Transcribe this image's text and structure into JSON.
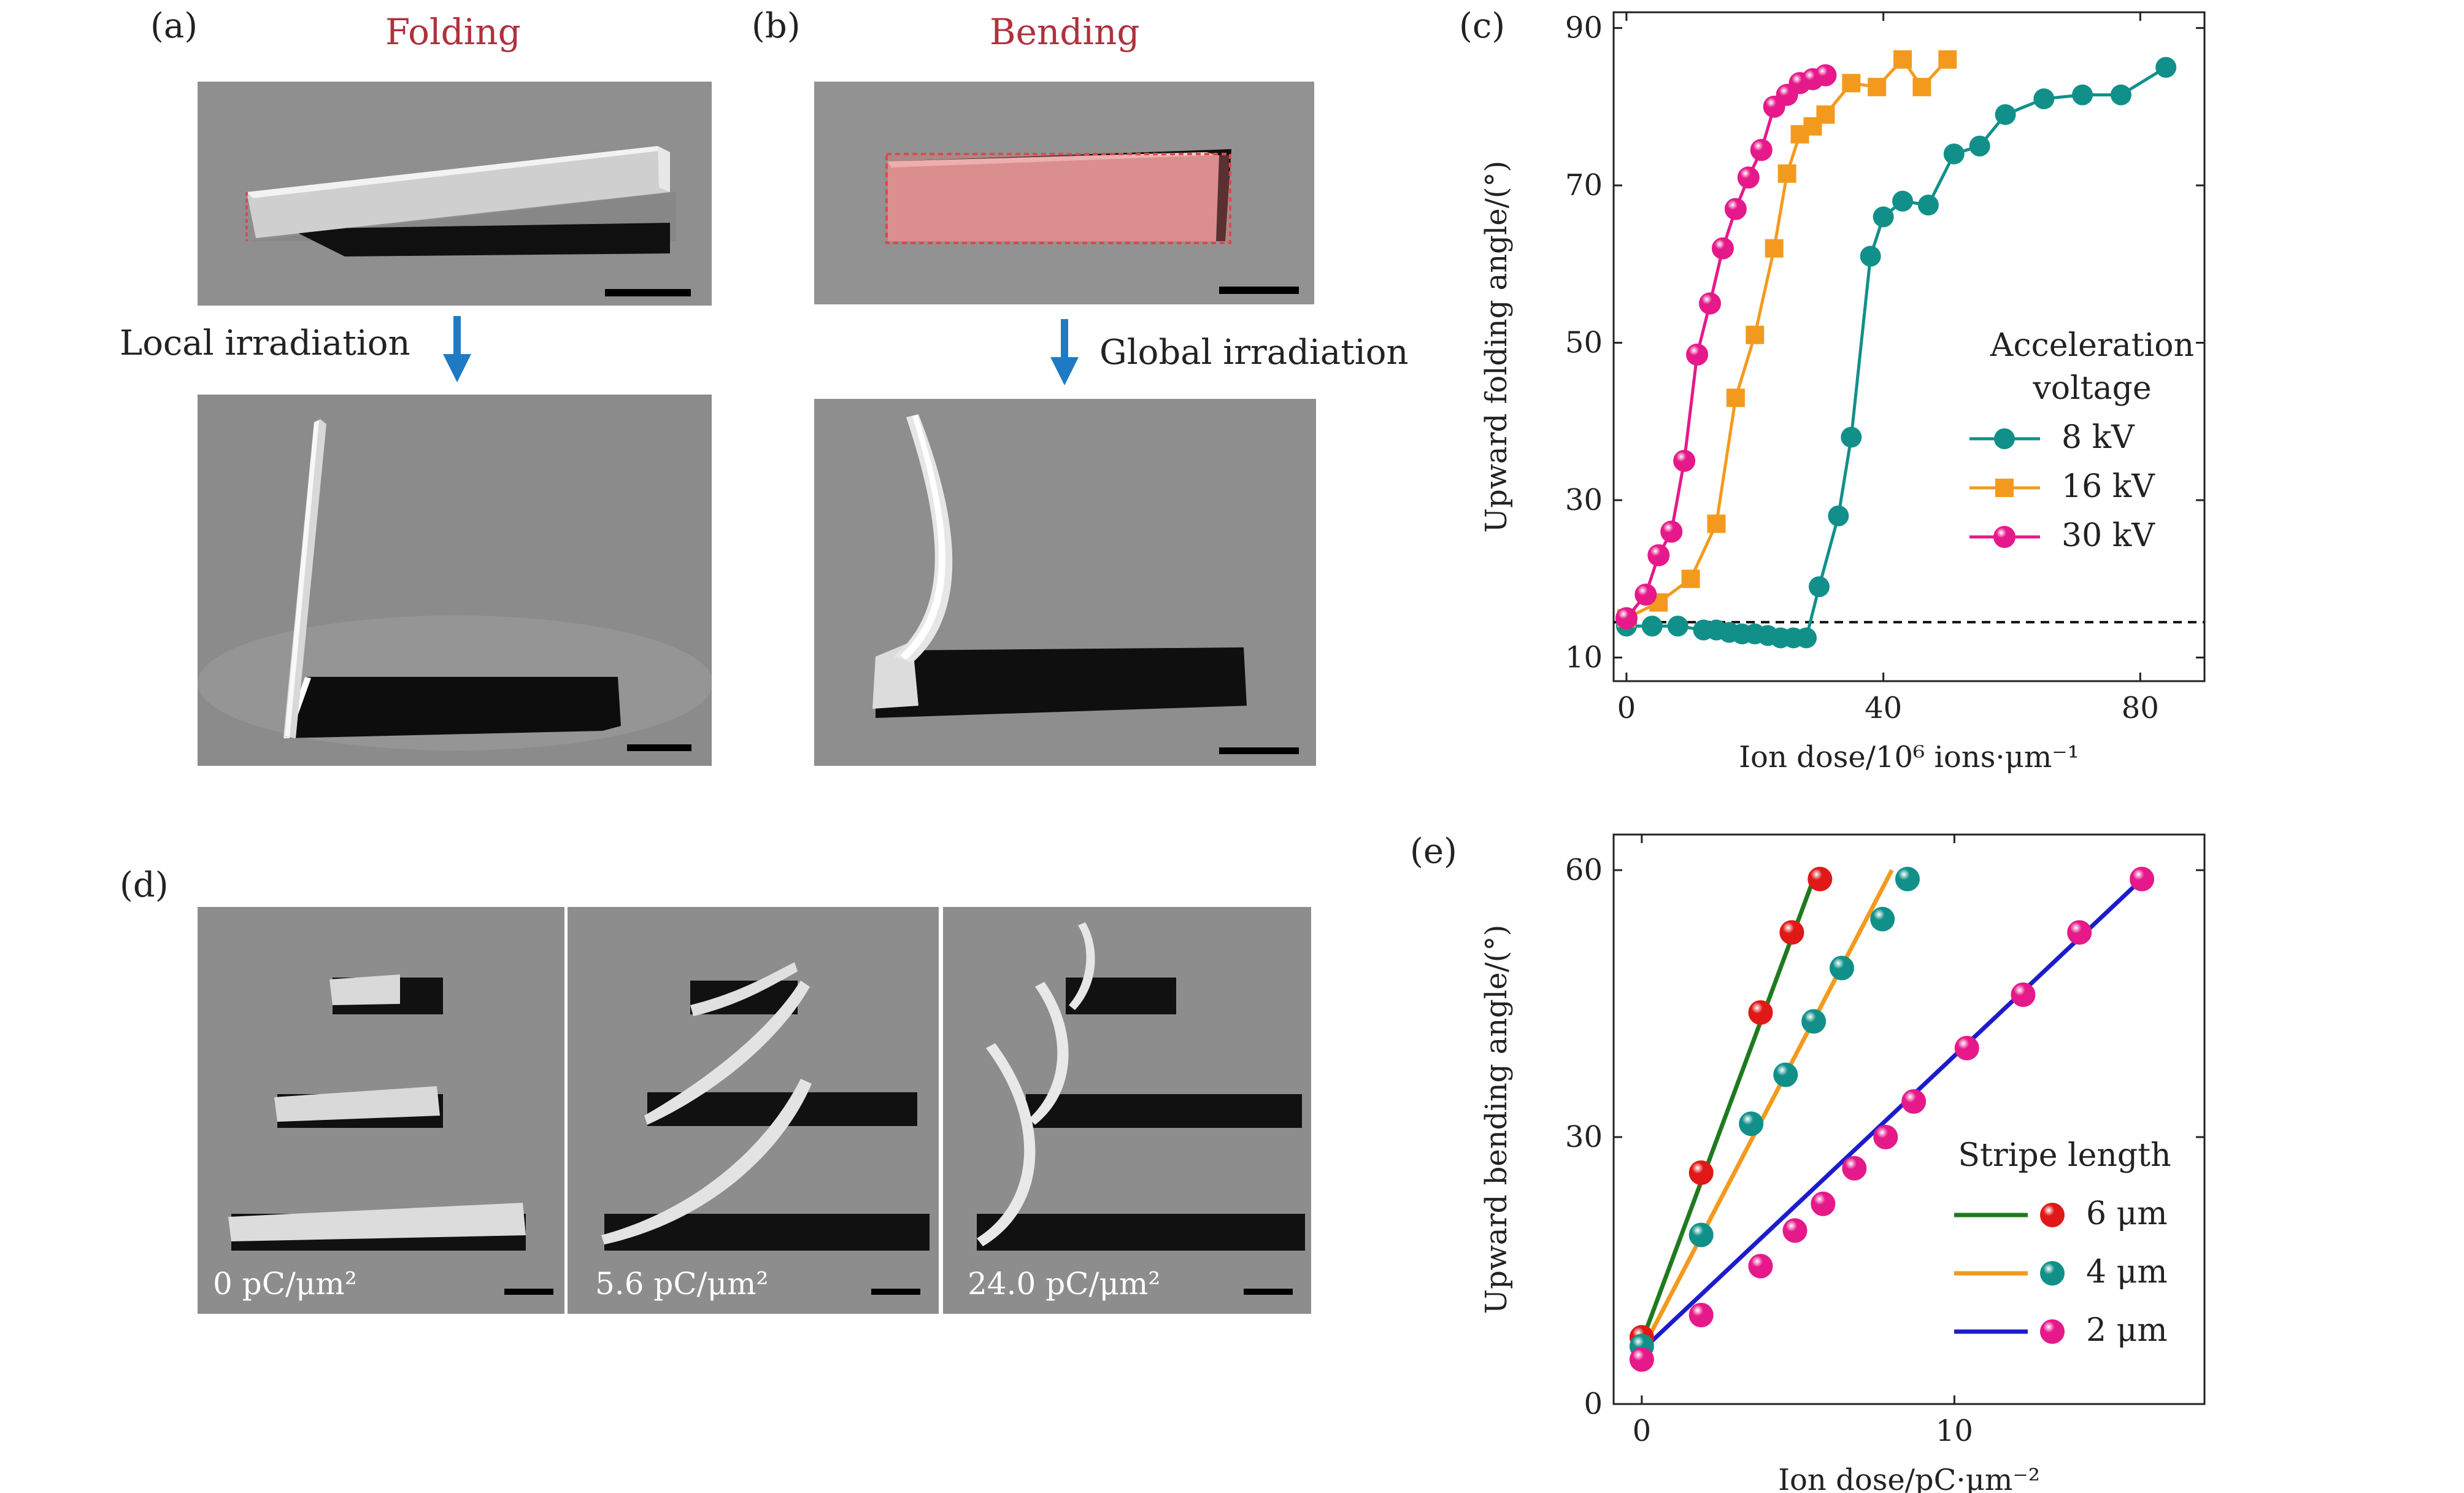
{
  "panels": {
    "a": {
      "label": "(a)",
      "title": "Folding",
      "arrow_text": "Local irradiation"
    },
    "b": {
      "label": "(b)",
      "title": "Bending",
      "arrow_text": "Global irradiation"
    },
    "c": {
      "label": "(c)"
    },
    "d": {
      "label": "(d)",
      "images": [
        "0 pC/μm²",
        "5.6 pC/μm²",
        "24.0 pC/μm²"
      ]
    },
    "e": {
      "label": "(e)"
    }
  },
  "colors": {
    "title_red": "#b0313d",
    "arrow_blue": "#1f7ac6",
    "teal": "#11908a",
    "orange": "#f39a1e",
    "magenta": "#e6198a",
    "red": "#e01818",
    "green": "#1f7a1f",
    "blue": "#1c1ccc"
  },
  "chart_data": [
    {
      "id": "c",
      "type": "line",
      "xlabel": "Ion dose/10⁶ ions·μm⁻¹",
      "ylabel": "Upward folding angle/(°)",
      "xlim": [
        -2,
        90
      ],
      "ylim": [
        7,
        92
      ],
      "xticks": [
        0,
        40,
        80
      ],
      "yticks": [
        10,
        30,
        50,
        70,
        90
      ],
      "reference_line_y": 14.5,
      "legend_title": "Acceleration voltage",
      "series": [
        {
          "name": "8 kV",
          "color": "#11908a",
          "marker": "circle",
          "x": [
            0,
            4,
            8,
            12,
            14,
            16,
            18,
            20,
            22,
            24,
            26,
            28,
            30,
            33,
            35,
            38,
            40,
            43,
            47,
            51,
            55,
            59,
            65,
            71,
            77,
            84
          ],
          "y": [
            14,
            14,
            14,
            13.5,
            13.5,
            13.2,
            13,
            13,
            12.8,
            12.5,
            12.5,
            12.5,
            19,
            28,
            38,
            61,
            66,
            68,
            67.5,
            74,
            75,
            79,
            81,
            81.5,
            81.5,
            85
          ]
        },
        {
          "name": "16 kV",
          "color": "#f39a1e",
          "marker": "square",
          "x": [
            0,
            5,
            10,
            14,
            17,
            20,
            23,
            25,
            27,
            29,
            31,
            35,
            39,
            43,
            46,
            50
          ],
          "y": [
            15,
            17,
            20,
            27,
            43,
            51,
            62,
            71.5,
            76.5,
            77.5,
            79,
            83,
            82.5,
            86,
            82.5,
            86
          ]
        },
        {
          "name": "30 kV",
          "color": "#e6198a",
          "marker": "sphere",
          "x": [
            0,
            3,
            5,
            7,
            9,
            11,
            13,
            15,
            17,
            19,
            21,
            23,
            25,
            27,
            29,
            31
          ],
          "y": [
            15,
            18,
            23,
            26,
            35,
            48.5,
            55,
            62,
            67,
            71,
            74.5,
            80,
            81.5,
            83,
            83.5,
            84
          ]
        }
      ]
    },
    {
      "id": "e",
      "type": "scatter",
      "xlabel": "Ion dose/pC·μm⁻²",
      "ylabel": "Upward bending angle/(°)",
      "xlim": [
        -0.9,
        18
      ],
      "ylim": [
        0,
        64
      ],
      "xticks": [
        0,
        10
      ],
      "yticks": [
        0,
        30,
        60
      ],
      "legend_title": "Stripe length",
      "series": [
        {
          "name": "6 μm",
          "point_color": "#e01818",
          "line_color": "#1f7a1f",
          "x": [
            0,
            1.9,
            3.8,
            4.8,
            5.7
          ],
          "y": [
            7.5,
            26,
            44,
            53,
            59
          ],
          "fit": [
            [
              0,
              7
            ],
            [
              5.6,
              60
            ]
          ]
        },
        {
          "name": "4 μm",
          "point_color": "#11908a",
          "line_color": "#f39a1e",
          "x": [
            0,
            1.9,
            3.5,
            4.6,
            5.5,
            6.4,
            7.7,
            8.5
          ],
          "y": [
            6.5,
            19,
            31.5,
            37,
            43,
            49,
            54.5,
            59
          ],
          "fit": [
            [
              0,
              6
            ],
            [
              8.0,
              60
            ]
          ]
        },
        {
          "name": "2 μm",
          "point_color": "#e6198a",
          "line_color": "#1c1ccc",
          "x": [
            0,
            1.9,
            3.8,
            4.9,
            5.8,
            6.8,
            7.8,
            8.7,
            10.4,
            12.2,
            14.0,
            16.0
          ],
          "y": [
            5,
            10,
            15.5,
            19.5,
            22.5,
            26.5,
            30,
            34,
            40,
            46,
            53,
            59
          ],
          "fit": [
            [
              0,
              6
            ],
            [
              16.0,
              59
            ]
          ]
        }
      ]
    }
  ]
}
